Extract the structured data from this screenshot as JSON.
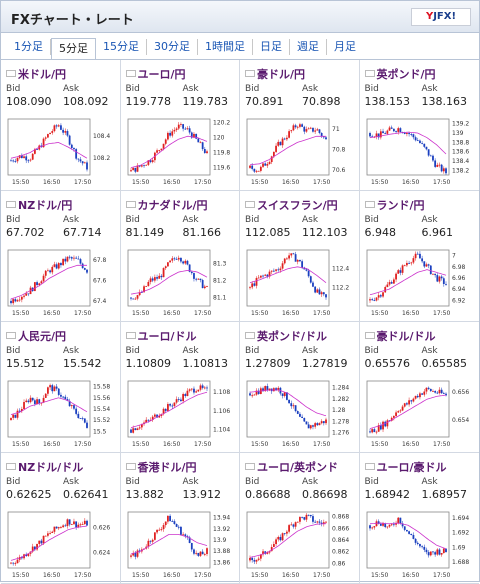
{
  "app": {
    "title": "FXチャート・レート",
    "logo": "YJFX!"
  },
  "tabs": [
    "1分足",
    "5分足",
    "15分足",
    "30分足",
    "1時間足",
    "日足",
    "週足",
    "月足"
  ],
  "active_tab": 1,
  "labels": {
    "bid": "Bid",
    "ask": "Ask"
  },
  "x_ticks": [
    "15:50",
    "16:50",
    "17:50"
  ],
  "pairs": [
    {
      "name": "米ドル/円",
      "bid": "108.090",
      "ask": "108.092",
      "yticks": [
        "108.4",
        "108.2"
      ],
      "ylim": [
        108.05,
        108.55
      ],
      "trend": [
        108.18,
        108.22,
        108.2,
        108.3,
        108.42,
        108.5,
        108.38,
        108.2,
        108.12
      ],
      "ma": [
        108.2,
        108.22,
        108.25,
        108.3,
        108.33,
        108.34,
        108.3,
        108.25,
        108.2
      ]
    },
    {
      "name": "ユーロ/円",
      "bid": "119.778",
      "ask": "119.783",
      "yticks": [
        "120.2",
        "120",
        "119.8",
        "119.6"
      ],
      "ylim": [
        119.5,
        120.25
      ],
      "trend": [
        119.55,
        119.62,
        119.7,
        119.85,
        120.05,
        120.15,
        120.1,
        119.95,
        119.78
      ],
      "ma": [
        119.6,
        119.63,
        119.7,
        119.8,
        119.9,
        119.98,
        120.02,
        120.0,
        119.95
      ]
    },
    {
      "name": "豪ドル/円",
      "bid": "70.891",
      "ask": "70.898",
      "yticks": [
        "71",
        "70.8",
        "70.6"
      ],
      "ylim": [
        70.55,
        71.1
      ],
      "trend": [
        70.62,
        70.6,
        70.7,
        70.85,
        70.95,
        71.05,
        70.98,
        71.0,
        70.89
      ],
      "ma": [
        70.65,
        70.66,
        70.7,
        70.76,
        70.82,
        70.87,
        70.9,
        70.93,
        70.93
      ]
    },
    {
      "name": "英ポンド/円",
      "bid": "138.153",
      "ask": "138.163",
      "yticks": [
        "139.2",
        "139",
        "138.8",
        "138.6",
        "138.4",
        "138.2"
      ],
      "ylim": [
        138.1,
        139.3
      ],
      "trend": [
        139.0,
        138.95,
        139.05,
        139.1,
        139.0,
        138.85,
        138.6,
        138.3,
        138.15
      ],
      "ma": [
        138.9,
        138.93,
        138.97,
        139.0,
        139.02,
        139.0,
        138.9,
        138.75,
        138.55
      ]
    },
    {
      "name": "NZドル/円",
      "bid": "67.702",
      "ask": "67.714",
      "yticks": [
        "67.8",
        "67.6",
        "67.4"
      ],
      "ylim": [
        67.35,
        67.9
      ],
      "trend": [
        67.4,
        67.45,
        67.5,
        67.6,
        67.7,
        67.75,
        67.82,
        67.8,
        67.7
      ],
      "ma": [
        67.42,
        67.45,
        67.5,
        67.55,
        67.62,
        67.67,
        67.72,
        67.75,
        67.75
      ]
    },
    {
      "name": "カナダドル/円",
      "bid": "81.149",
      "ask": "81.166",
      "yticks": [
        "81.3",
        "81.2",
        "81.1"
      ],
      "ylim": [
        81.05,
        81.38
      ],
      "trend": [
        81.1,
        81.12,
        81.2,
        81.22,
        81.3,
        81.35,
        81.28,
        81.2,
        81.15
      ],
      "ma": [
        81.12,
        81.13,
        81.15,
        81.18,
        81.22,
        81.25,
        81.26,
        81.25,
        81.22
      ]
    },
    {
      "name": "スイスフラン/円",
      "bid": "112.085",
      "ask": "112.103",
      "yticks": [
        "112.4",
        "112.2"
      ],
      "ylim": [
        112.0,
        112.6
      ],
      "trend": [
        112.2,
        112.3,
        112.35,
        112.4,
        112.55,
        112.5,
        112.35,
        112.15,
        112.08
      ],
      "ma": [
        112.25,
        112.28,
        112.32,
        112.36,
        112.4,
        112.42,
        112.4,
        112.33,
        112.25
      ]
    },
    {
      "name": "ランド/円",
      "bid": "6.948",
      "ask": "6.961",
      "yticks": [
        "7",
        "6.98",
        "6.96",
        "6.94",
        "6.92"
      ],
      "ylim": [
        6.91,
        7.01
      ],
      "trend": [
        6.92,
        6.93,
        6.95,
        6.97,
        6.99,
        7.0,
        6.98,
        6.96,
        6.95
      ],
      "ma": [
        6.93,
        6.935,
        6.94,
        6.95,
        6.96,
        6.97,
        6.975,
        6.97,
        6.965
      ]
    },
    {
      "name": "人民元/円",
      "bid": "15.512",
      "ask": "15.542",
      "yticks": [
        "15.58",
        "15.56",
        "15.54",
        "15.52",
        "15.5"
      ],
      "ylim": [
        15.49,
        15.59
      ],
      "trend": [
        15.52,
        15.54,
        15.56,
        15.55,
        15.58,
        15.57,
        15.55,
        15.53,
        15.51
      ],
      "ma": [
        15.53,
        15.535,
        15.545,
        15.55,
        15.555,
        15.56,
        15.555,
        15.545,
        15.535
      ]
    },
    {
      "name": "ユーロ/ドル",
      "bid": "1.10809",
      "ask": "1.10813",
      "yticks": [
        "1.108",
        "1.106",
        "1.104"
      ],
      "ylim": [
        1.1032,
        1.1092
      ],
      "trend": [
        1.104,
        1.1045,
        1.105,
        1.1058,
        1.1065,
        1.1072,
        1.108,
        1.1085,
        1.1081
      ],
      "ma": [
        1.1042,
        1.1045,
        1.1049,
        1.1055,
        1.106,
        1.1066,
        1.1072,
        1.1077,
        1.108
      ]
    },
    {
      "name": "英ポンド/ドル",
      "bid": "1.27809",
      "ask": "1.27819",
      "yticks": [
        "1.284",
        "1.282",
        "1.28",
        "1.278",
        "1.276"
      ],
      "ylim": [
        1.2752,
        1.2852
      ],
      "trend": [
        1.283,
        1.2835,
        1.284,
        1.2838,
        1.282,
        1.279,
        1.277,
        1.2775,
        1.2781
      ],
      "ma": [
        1.2832,
        1.2834,
        1.2836,
        1.2836,
        1.283,
        1.2818,
        1.2805,
        1.2795,
        1.279
      ]
    },
    {
      "name": "豪ドル/ドル",
      "bid": "0.65576",
      "ask": "0.65585",
      "yticks": [
        "0.656",
        "0.654"
      ],
      "ylim": [
        0.6528,
        0.6568
      ],
      "trend": [
        0.6532,
        0.6535,
        0.654,
        0.6548,
        0.6552,
        0.6558,
        0.6562,
        0.656,
        0.6558
      ],
      "ma": [
        0.6534,
        0.6536,
        0.6539,
        0.6543,
        0.6547,
        0.6551,
        0.6555,
        0.6557,
        0.6558
      ]
    },
    {
      "name": "NZドル/ドル",
      "bid": "0.62625",
      "ask": "0.62641",
      "yticks": [
        "0.626",
        "0.624"
      ],
      "ylim": [
        0.6228,
        0.6272
      ],
      "trend": [
        0.6232,
        0.6236,
        0.6242,
        0.6248,
        0.6255,
        0.626,
        0.6265,
        0.6262,
        0.6263
      ],
      "ma": [
        0.6234,
        0.6236,
        0.624,
        0.6245,
        0.625,
        0.6254,
        0.6258,
        0.626,
        0.6261
      ]
    },
    {
      "name": "香港ドル/円",
      "bid": "13.882",
      "ask": "13.912",
      "yticks": [
        "13.94",
        "13.92",
        "13.9",
        "13.88",
        "13.86"
      ],
      "ylim": [
        13.85,
        13.95
      ],
      "trend": [
        13.87,
        13.88,
        13.9,
        13.92,
        13.94,
        13.92,
        13.9,
        13.87,
        13.88
      ],
      "ma": [
        13.875,
        13.88,
        13.89,
        13.9,
        13.91,
        13.91,
        13.905,
        13.895,
        13.89
      ]
    },
    {
      "name": "ユーロ/英ポンド",
      "bid": "0.86688",
      "ask": "0.86698",
      "yticks": [
        "0.868",
        "0.866",
        "0.864",
        "0.862",
        "0.86"
      ],
      "ylim": [
        0.8592,
        0.8688
      ],
      "trend": [
        0.8605,
        0.861,
        0.8625,
        0.864,
        0.866,
        0.8675,
        0.868,
        0.867,
        0.8669
      ],
      "ma": [
        0.861,
        0.8614,
        0.862,
        0.863,
        0.8643,
        0.8655,
        0.8663,
        0.8667,
        0.8668
      ]
    },
    {
      "name": "ユーロ/豪ドル",
      "bid": "1.68942",
      "ask": "1.68957",
      "yticks": [
        "1.694",
        "1.692",
        "1.69",
        "1.688"
      ],
      "ylim": [
        1.6872,
        1.6948
      ],
      "trend": [
        1.693,
        1.6935,
        1.6925,
        1.694,
        1.692,
        1.6905,
        1.689,
        1.6895,
        1.6894
      ],
      "ma": [
        1.6932,
        1.6933,
        1.6932,
        1.6933,
        1.693,
        1.6922,
        1.6912,
        1.6903,
        1.6898
      ]
    }
  ],
  "colors": {
    "up": "#e02020",
    "down": "#1a3fbf",
    "ma": "#cc33cc",
    "title": "#5a1a6e",
    "tab": "#1a56b4"
  },
  "flags": [
    "us-flag-icon",
    "eu-flag-icon",
    "au-flag-icon",
    "uk-flag-icon",
    "nz-flag-icon",
    "ca-flag-icon",
    "ch-flag-icon",
    "za-flag-icon",
    "cn-flag-icon",
    "eu-flag-icon",
    "uk-flag-icon",
    "au-flag-icon",
    "nz-flag-icon",
    "hk-flag-icon",
    "eu-flag-icon",
    "eu-flag-icon"
  ]
}
